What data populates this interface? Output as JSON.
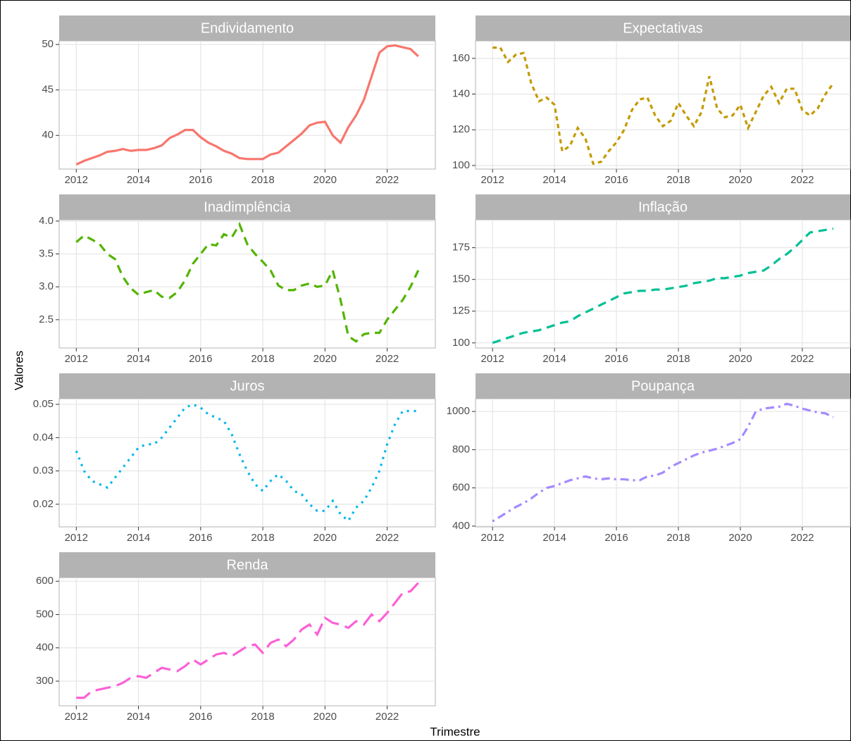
{
  "y_label": "Valores",
  "x_label": "Trimestre",
  "chart_data": [
    {
      "type": "line",
      "title": "Endividamento",
      "color": "#F8766D",
      "linetype": "solid",
      "grid": true,
      "x": [
        2012,
        2012.25,
        2012.5,
        2012.75,
        2013,
        2013.25,
        2013.5,
        2013.75,
        2014,
        2014.25,
        2014.5,
        2014.75,
        2015,
        2015.25,
        2015.5,
        2015.75,
        2016,
        2016.25,
        2016.5,
        2016.75,
        2017,
        2017.25,
        2017.5,
        2017.75,
        2018,
        2018.25,
        2018.5,
        2018.75,
        2019,
        2019.25,
        2019.5,
        2019.75,
        2020,
        2020.25,
        2020.5,
        2020.75,
        2021,
        2021.25,
        2021.5,
        2021.75,
        2022,
        2022.25,
        2022.5,
        2022.75,
        2023
      ],
      "values": [
        36.8,
        37.2,
        37.5,
        37.8,
        38.2,
        38.3,
        38.5,
        38.3,
        38.4,
        38.4,
        38.6,
        38.9,
        39.7,
        40.1,
        40.6,
        40.6,
        39.8,
        39.2,
        38.8,
        38.3,
        38.0,
        37.5,
        37.4,
        37.4,
        37.4,
        37.9,
        38.1,
        38.8,
        39.5,
        40.2,
        41.1,
        41.4,
        41.5,
        40.0,
        39.2,
        40.9,
        42.2,
        43.9,
        46.5,
        49.1,
        49.8,
        49.9,
        49.7,
        49.5,
        48.7
      ],
      "xlim": [
        2011.45,
        2023.55
      ],
      "xticks": [
        2012,
        2014,
        2016,
        2018,
        2020,
        2022
      ],
      "ylim": [
        36.3,
        50.4
      ],
      "yticks": [
        40,
        45,
        50
      ]
    },
    {
      "type": "line",
      "title": "Expectativas",
      "color": "#C49A00",
      "linetype": "dotted",
      "grid": true,
      "x": [
        2012,
        2012.25,
        2012.5,
        2012.75,
        2013,
        2013.25,
        2013.5,
        2013.75,
        2014,
        2014.25,
        2014.5,
        2014.75,
        2015,
        2015.25,
        2015.5,
        2015.75,
        2016,
        2016.25,
        2016.5,
        2016.75,
        2017,
        2017.25,
        2017.5,
        2017.75,
        2018,
        2018.25,
        2018.5,
        2018.75,
        2019,
        2019.25,
        2019.5,
        2019.75,
        2020,
        2020.25,
        2020.5,
        2020.75,
        2021,
        2021.25,
        2021.5,
        2021.75,
        2022,
        2022.25,
        2022.5,
        2022.75,
        2023
      ],
      "values": [
        166,
        166,
        158,
        162,
        163,
        146,
        136,
        138,
        134,
        108,
        111,
        121,
        115,
        101,
        102,
        108,
        113,
        120,
        131,
        137,
        138,
        128,
        122,
        125,
        135,
        128,
        122,
        130,
        150,
        132,
        127,
        128,
        134,
        121,
        130,
        139,
        144,
        135,
        143,
        143,
        131,
        128,
        132,
        140,
        146
      ],
      "xlim": [
        2011.45,
        2023.55
      ],
      "xticks": [
        2012,
        2014,
        2016,
        2018,
        2020,
        2022
      ],
      "ylim": [
        98,
        169.8
      ],
      "yticks": [
        100,
        120,
        140,
        160
      ]
    },
    {
      "type": "line",
      "title": "Inadimplência",
      "color": "#53B400",
      "linetype": "dashed",
      "grid": true,
      "x": [
        2012,
        2012.25,
        2012.5,
        2012.75,
        2013,
        2013.25,
        2013.5,
        2013.75,
        2014,
        2014.25,
        2014.5,
        2014.75,
        2015,
        2015.25,
        2015.5,
        2015.75,
        2016,
        2016.25,
        2016.5,
        2016.75,
        2017,
        2017.25,
        2017.5,
        2017.75,
        2018,
        2018.25,
        2018.5,
        2018.75,
        2019,
        2019.25,
        2019.5,
        2019.75,
        2020,
        2020.25,
        2020.5,
        2020.75,
        2021,
        2021.25,
        2021.5,
        2021.75,
        2022,
        2022.25,
        2022.5,
        2022.75,
        2023
      ],
      "values": [
        3.68,
        3.78,
        3.72,
        3.65,
        3.5,
        3.42,
        3.15,
        2.98,
        2.88,
        2.92,
        2.95,
        2.85,
        2.83,
        2.92,
        3.1,
        3.35,
        3.5,
        3.65,
        3.63,
        3.8,
        3.75,
        3.95,
        3.65,
        3.5,
        3.38,
        3.25,
        3.02,
        2.95,
        2.95,
        3.02,
        3.05,
        3.0,
        3.02,
        3.25,
        2.8,
        2.25,
        2.17,
        2.28,
        2.3,
        2.3,
        2.5,
        2.65,
        2.8,
        3.0,
        3.25
      ],
      "xlim": [
        2011.45,
        2023.55
      ],
      "xticks": [
        2012,
        2014,
        2016,
        2018,
        2020,
        2022
      ],
      "ylim": [
        2.07,
        4.02
      ],
      "yticks": [
        2.5,
        {
          "value": 3,
          "label": "3.0"
        },
        3.5,
        {
          "value": 4,
          "label": "4.0"
        }
      ]
    },
    {
      "type": "line",
      "title": "Inflação",
      "color": "#00C094",
      "linetype": "dashed",
      "grid": true,
      "x": [
        2012,
        2012.25,
        2012.5,
        2012.75,
        2013,
        2013.25,
        2013.5,
        2013.75,
        2014,
        2014.25,
        2014.5,
        2014.75,
        2015,
        2015.25,
        2015.5,
        2015.75,
        2016,
        2016.25,
        2016.5,
        2016.75,
        2017,
        2017.25,
        2017.5,
        2017.75,
        2018,
        2018.25,
        2018.5,
        2018.75,
        2019,
        2019.25,
        2019.5,
        2019.75,
        2020,
        2020.25,
        2020.5,
        2020.75,
        2021,
        2021.25,
        2021.5,
        2021.75,
        2022,
        2022.25,
        2022.5,
        2022.75,
        2023
      ],
      "values": [
        100,
        102,
        104,
        106,
        108,
        109,
        110,
        112,
        114,
        116,
        117,
        121,
        124,
        127,
        130,
        133,
        136,
        139,
        140,
        141,
        141,
        142,
        142,
        143,
        144,
        145,
        147,
        148,
        149,
        151,
        151,
        152,
        153,
        155,
        156,
        157,
        161,
        166,
        170,
        175,
        181,
        187,
        188,
        189,
        190
      ],
      "xlim": [
        2011.45,
        2023.55
      ],
      "xticks": [
        2012,
        2014,
        2016,
        2018,
        2020,
        2022
      ],
      "ylim": [
        96,
        197
      ],
      "yticks": [
        100,
        125,
        150,
        175
      ]
    },
    {
      "type": "line",
      "title": "Juros",
      "color": "#00B6EB",
      "linetype": "dotted-fine",
      "grid": true,
      "x": [
        2012,
        2012.25,
        2012.5,
        2012.75,
        2013,
        2013.25,
        2013.5,
        2013.75,
        2014,
        2014.25,
        2014.5,
        2014.75,
        2015,
        2015.25,
        2015.5,
        2015.75,
        2016,
        2016.25,
        2016.5,
        2016.75,
        2017,
        2017.25,
        2017.5,
        2017.75,
        2018,
        2018.25,
        2018.5,
        2018.75,
        2019,
        2019.25,
        2019.5,
        2019.75,
        2020,
        2020.25,
        2020.5,
        2020.75,
        2021,
        2021.25,
        2021.5,
        2021.75,
        2022,
        2022.25,
        2022.5,
        2022.75,
        2023
      ],
      "values": [
        0.036,
        0.03,
        0.027,
        0.026,
        0.025,
        0.028,
        0.031,
        0.034,
        0.037,
        0.038,
        0.038,
        0.04,
        0.043,
        0.046,
        0.049,
        0.05,
        0.049,
        0.047,
        0.046,
        0.045,
        0.041,
        0.035,
        0.03,
        0.026,
        0.024,
        0.027,
        0.029,
        0.027,
        0.024,
        0.023,
        0.02,
        0.018,
        0.018,
        0.021,
        0.017,
        0.015,
        0.019,
        0.021,
        0.025,
        0.03,
        0.038,
        0.044,
        0.048,
        0.048,
        0.048
      ],
      "xlim": [
        2011.45,
        2023.55
      ],
      "xticks": [
        2012,
        2014,
        2016,
        2018,
        2020,
        2022
      ],
      "ylim": [
        0.0132,
        0.0517
      ],
      "yticks": [
        0.02,
        0.03,
        0.04,
        0.05
      ]
    },
    {
      "type": "line",
      "title": "Poupança",
      "color": "#A58AFF",
      "linetype": "dotdash",
      "grid": true,
      "x": [
        2012,
        2012.25,
        2012.5,
        2012.75,
        2013,
        2013.25,
        2013.5,
        2013.75,
        2014,
        2014.25,
        2014.5,
        2014.75,
        2015,
        2015.25,
        2015.5,
        2015.75,
        2016,
        2016.25,
        2016.5,
        2016.75,
        2017,
        2017.25,
        2017.5,
        2017.75,
        2018,
        2018.25,
        2018.5,
        2018.75,
        2019,
        2019.25,
        2019.5,
        2019.75,
        2020,
        2020.25,
        2020.5,
        2020.75,
        2021,
        2021.25,
        2021.5,
        2021.75,
        2022,
        2022.25,
        2022.5,
        2022.75,
        2023
      ],
      "values": [
        425,
        450,
        475,
        500,
        520,
        545,
        575,
        600,
        610,
        625,
        640,
        650,
        660,
        650,
        645,
        650,
        645,
        645,
        640,
        640,
        660,
        665,
        680,
        710,
        730,
        750,
        770,
        785,
        795,
        805,
        820,
        835,
        855,
        920,
        1000,
        1015,
        1020,
        1025,
        1040,
        1030,
        1015,
        1005,
        995,
        990,
        970
      ],
      "xlim": [
        2011.45,
        2023.55
      ],
      "xticks": [
        2012,
        2014,
        2016,
        2018,
        2020,
        2022
      ],
      "ylim": [
        396,
        1067
      ],
      "yticks": [
        400,
        600,
        800,
        1000
      ]
    },
    {
      "type": "line",
      "title": "Renda",
      "color": "#FB61D7",
      "linetype": "longdash",
      "grid": true,
      "x": [
        2012,
        2012.25,
        2012.5,
        2012.75,
        2013,
        2013.25,
        2013.5,
        2013.75,
        2014,
        2014.25,
        2014.5,
        2014.75,
        2015,
        2015.25,
        2015.5,
        2015.75,
        2016,
        2016.25,
        2016.5,
        2016.75,
        2017,
        2017.25,
        2017.5,
        2017.75,
        2018,
        2018.25,
        2018.5,
        2018.75,
        2019,
        2019.25,
        2019.5,
        2019.75,
        2020,
        2020.25,
        2020.5,
        2020.75,
        2021,
        2021.25,
        2021.5,
        2021.75,
        2022,
        2022.25,
        2022.5,
        2022.75,
        2023
      ],
      "values": [
        250,
        250,
        270,
        275,
        280,
        285,
        295,
        310,
        315,
        310,
        325,
        340,
        335,
        330,
        345,
        365,
        350,
        365,
        380,
        385,
        375,
        390,
        405,
        410,
        385,
        415,
        425,
        405,
        425,
        455,
        470,
        440,
        490,
        475,
        470,
        460,
        480,
        470,
        500,
        480,
        505,
        535,
        565,
        570,
        595
      ],
      "xlim": [
        2011.45,
        2023.55
      ],
      "xticks": [
        2012,
        2014,
        2016,
        2018,
        2020,
        2022
      ],
      "ylim": [
        226,
        611
      ],
      "yticks": [
        300,
        400,
        500,
        600
      ]
    }
  ]
}
